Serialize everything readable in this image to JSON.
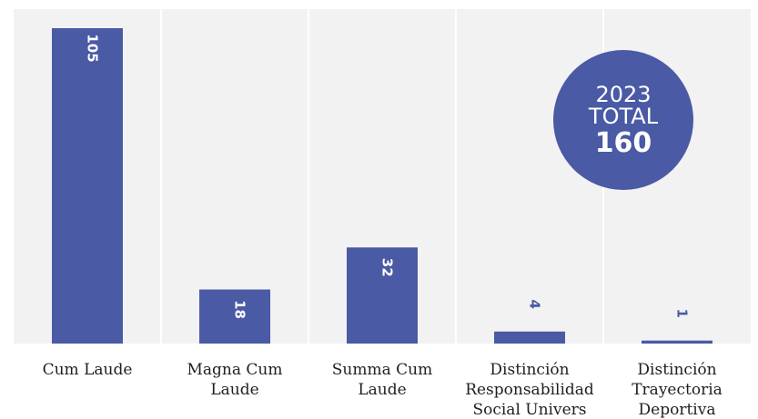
{
  "chart_data": {
    "type": "bar",
    "categories": [
      [
        "Cum Laude"
      ],
      [
        "Magna Cum",
        "Laude"
      ],
      [
        "Summa Cum",
        "Laude"
      ],
      [
        "Distinción",
        "Responsabilidad",
        "Social Univers"
      ],
      [
        "Distinción",
        "Trayectoria",
        "Deportiva"
      ]
    ],
    "values": [
      105,
      18,
      32,
      4,
      1
    ],
    "ylim": [
      0,
      105
    ],
    "grid": true,
    "title": "",
    "xlabel": "",
    "ylabel": ""
  },
  "badge": {
    "year": "2023",
    "label": "TOTAL",
    "value": "160"
  },
  "colors": {
    "bar": "#4a5aa5",
    "panel": "#f2f2f2",
    "grid": "#ffffff",
    "label_on_bar": "#ffffff",
    "label_above_bar": "#4a5aa5",
    "badge": "#4a5aa5"
  }
}
